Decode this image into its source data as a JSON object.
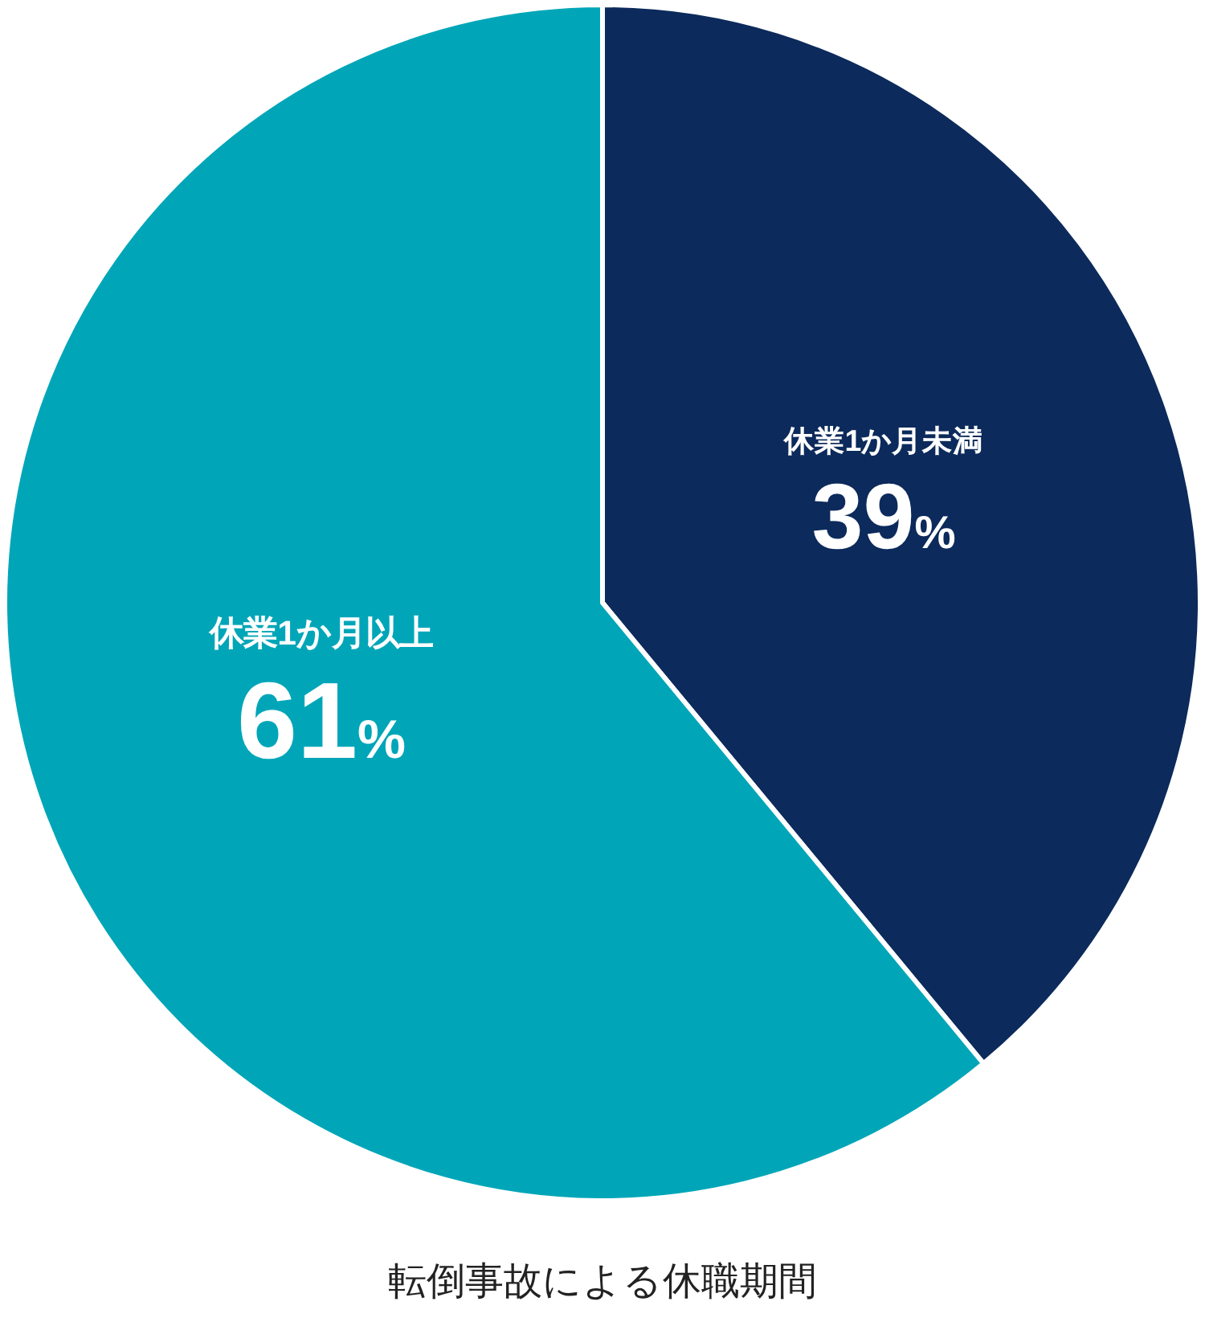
{
  "chart_data": {
    "type": "pie",
    "title": "転倒事故による休職期間",
    "categories": [
      "休業1か月未満",
      "休業1か月以上"
    ],
    "values": [
      39,
      61
    ],
    "colors": [
      "#0c2a5b",
      "#00a6b8"
    ],
    "value_labels": [
      "39%",
      "61%"
    ]
  }
}
